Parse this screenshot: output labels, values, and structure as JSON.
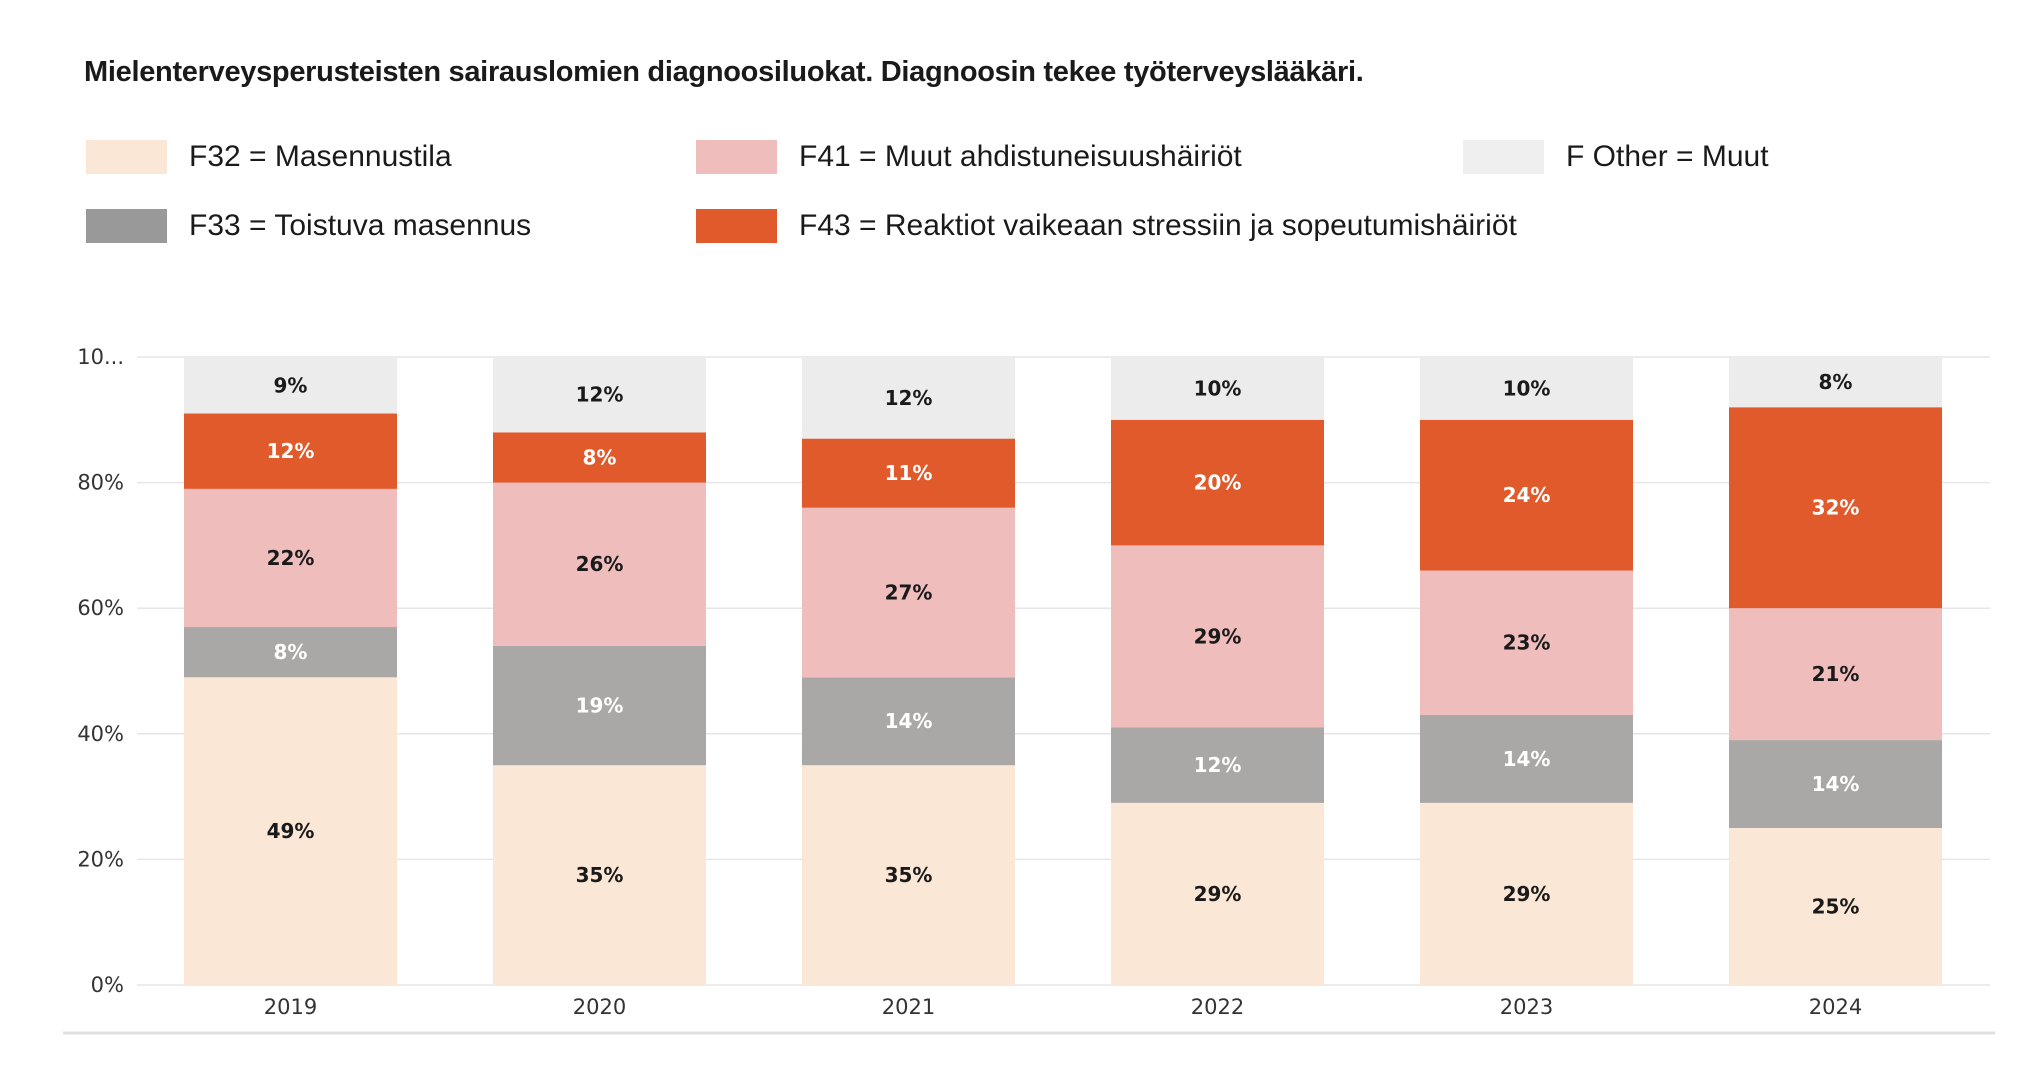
{
  "chart_data": {
    "type": "bar",
    "stacked": true,
    "title": "Mielenterveysperusteisten sairauslomien diagnoosiluokat. Diagnoosin tekee työterveyslääkäri.",
    "xlabel": "",
    "ylabel": "",
    "ylim": [
      0,
      100
    ],
    "y_ticks": [
      "0%",
      "20%",
      "40%",
      "60%",
      "80%",
      "10..."
    ],
    "grid": true,
    "legend_position": "top",
    "categories": [
      "2019",
      "2020",
      "2021",
      "2022",
      "2023",
      "2024"
    ],
    "series": [
      {
        "name": "F32 = Masennustila",
        "color": "#fbe7d5",
        "swatch": "#fbe7d5",
        "label_color": "#1a1a1a",
        "values": [
          49,
          35,
          35,
          29,
          29,
          25
        ]
      },
      {
        "name": "F33 = Toistuva masennus",
        "color": "#a9a8a7",
        "swatch": "#999999",
        "label_color": "#ffffff",
        "values": [
          8,
          19,
          14,
          12,
          14,
          14
        ]
      },
      {
        "name": "F41 = Muut ahdistuneisuushäiriöt",
        "color": "#f0bdbd",
        "swatch": "#f0bdbd",
        "label_color": "#1a1a1a",
        "values": [
          22,
          26,
          27,
          29,
          23,
          21
        ]
      },
      {
        "name": "F43 = Reaktiot vaikeaan stressiin ja sopeutumishäiriöt",
        "color": "#e05a2b",
        "swatch": "#e05a2b",
        "label_color": "#ffffff",
        "values": [
          12,
          8,
          11,
          20,
          24,
          32
        ]
      },
      {
        "name": "F Other = Muut",
        "color": "#ececec",
        "swatch": "#efefef",
        "label_color": "#1a1a1a",
        "values": [
          9,
          12,
          12,
          10,
          10,
          8
        ]
      }
    ]
  }
}
